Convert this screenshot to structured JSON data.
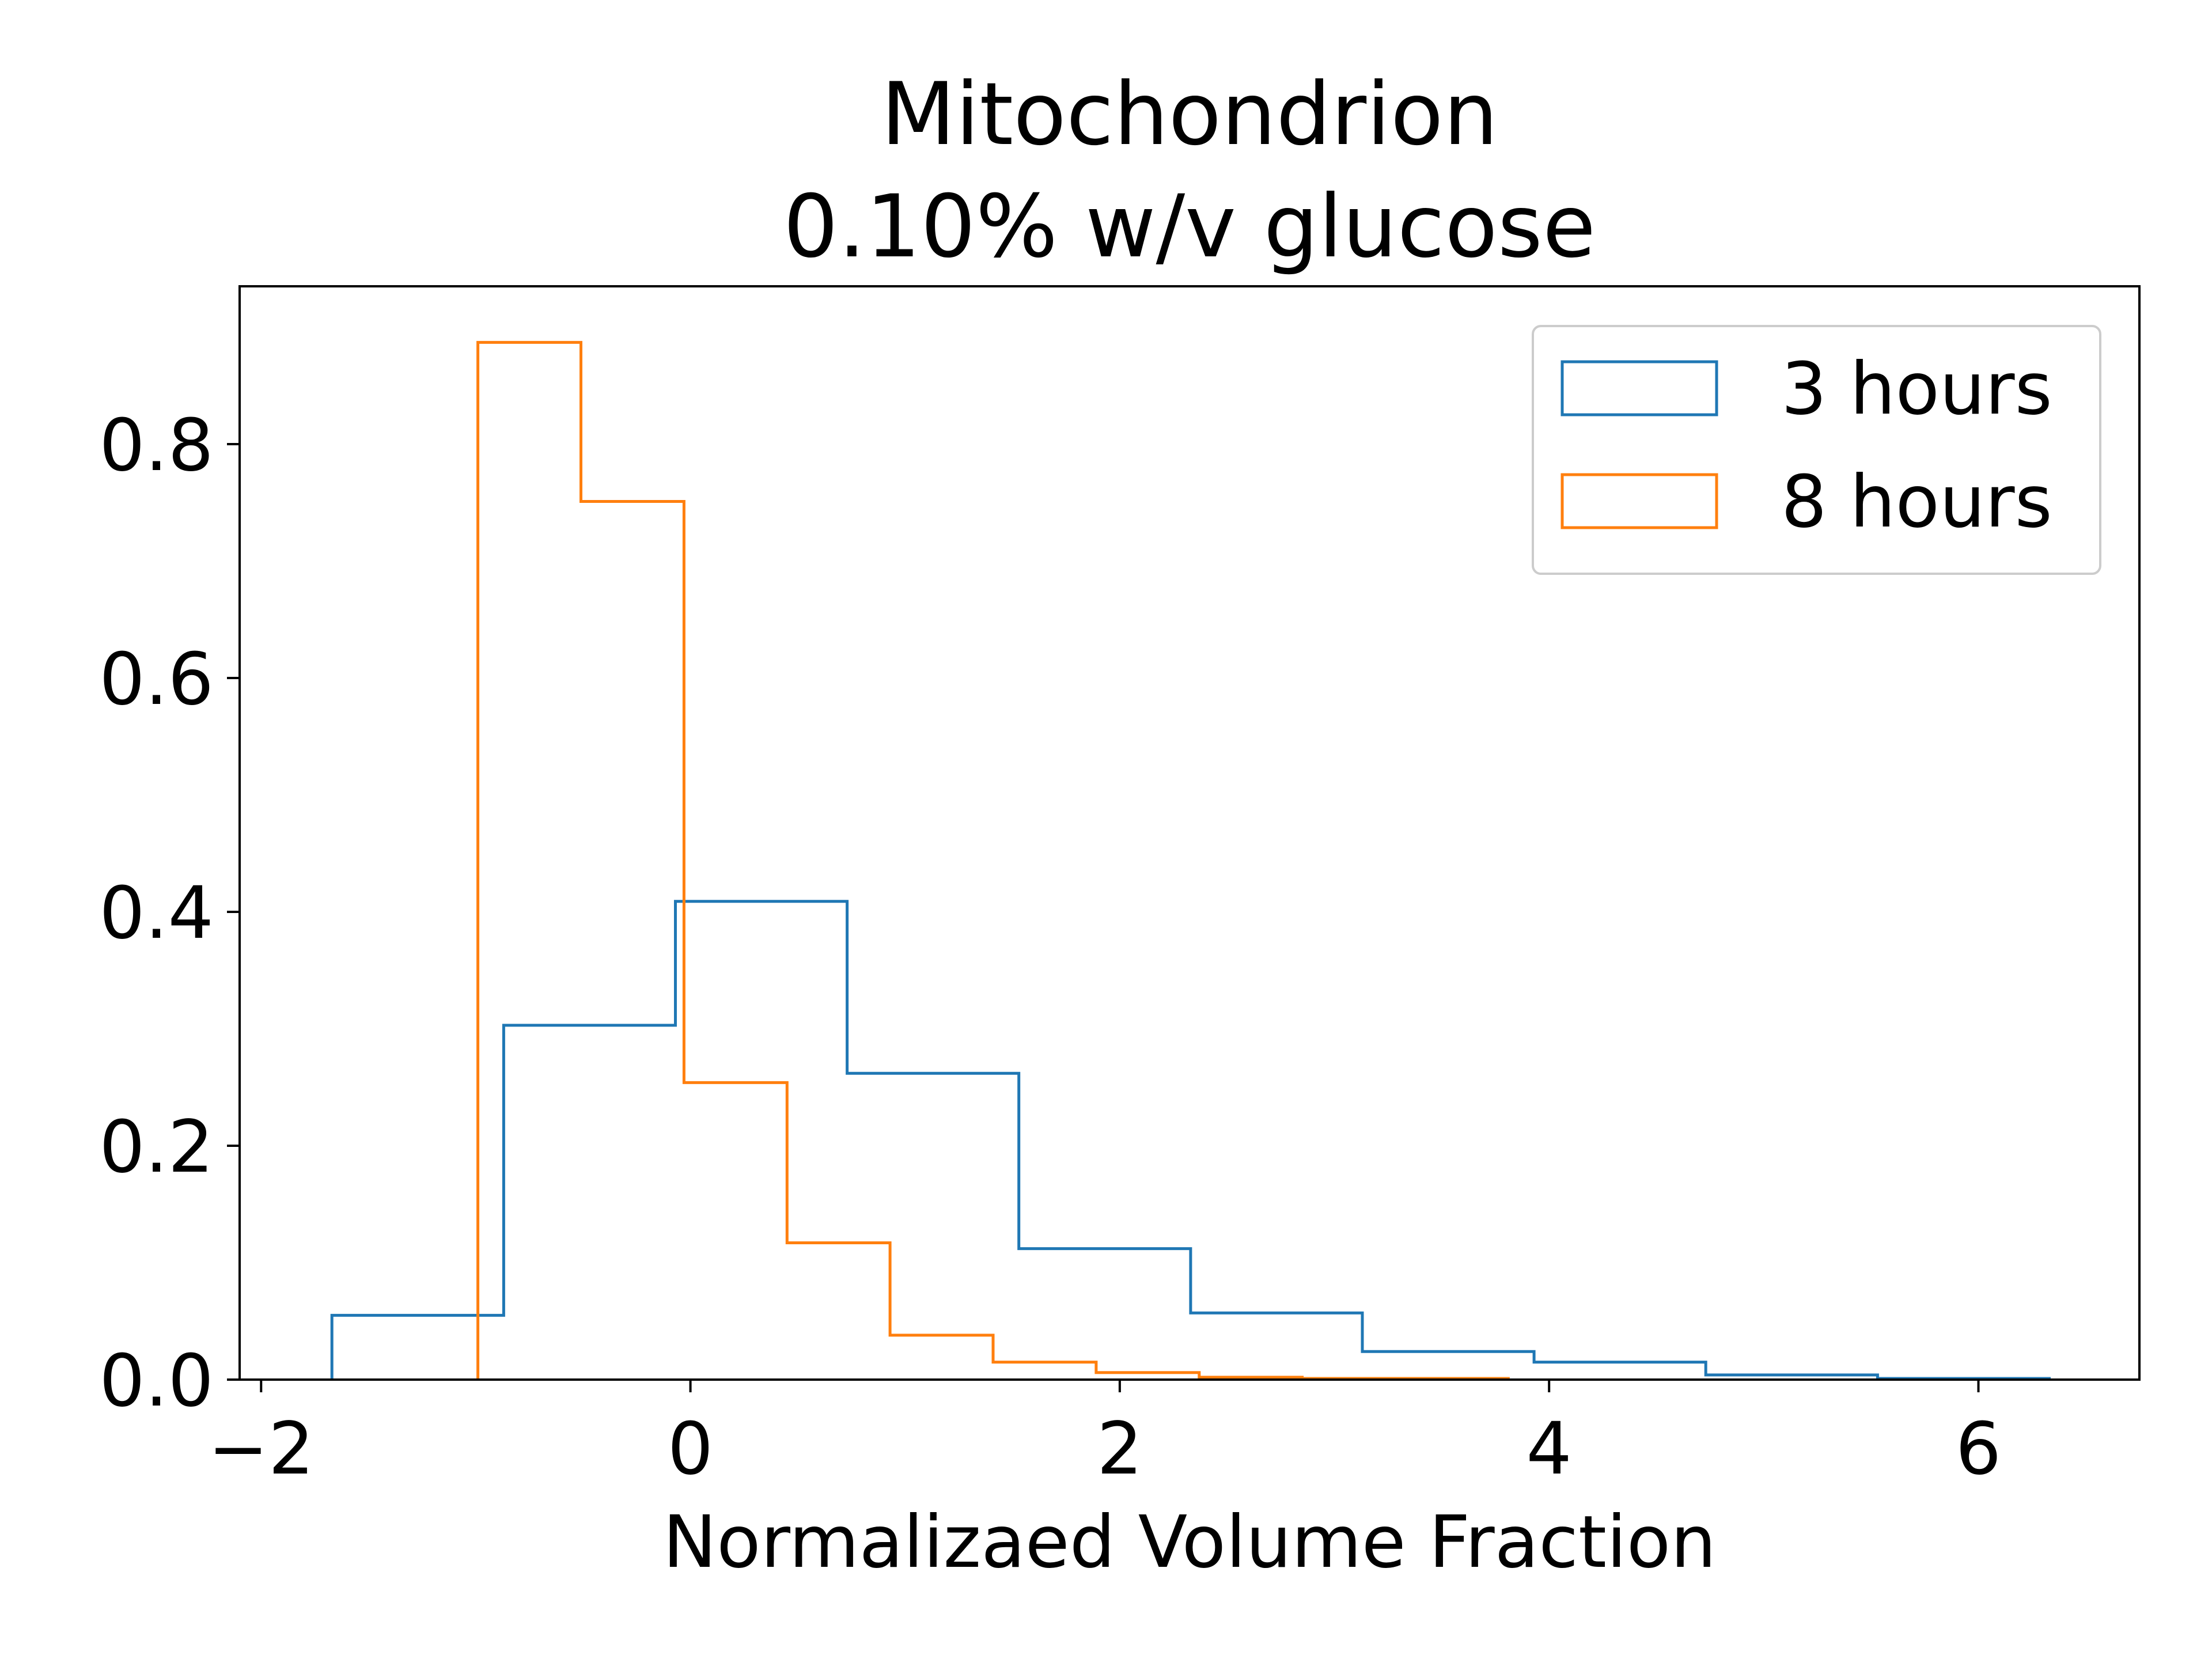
{
  "chart_data": {
    "type": "histogram",
    "title": "Mitochondrion",
    "subtitle": "0.10% w/v glucose",
    "xlabel": "Normalizaed Volume Fraction",
    "ylabel": "",
    "xlim": [
      -2.1,
      6.75
    ],
    "ylim": [
      0,
      0.935
    ],
    "xticks": [
      {
        "value": -2,
        "label": "−2"
      },
      {
        "value": 0,
        "label": "0"
      },
      {
        "value": 2,
        "label": "2"
      },
      {
        "value": 4,
        "label": "4"
      },
      {
        "value": 6,
        "label": "6"
      }
    ],
    "yticks": [
      {
        "value": 0.0,
        "label": "0.0"
      },
      {
        "value": 0.2,
        "label": "0.2"
      },
      {
        "value": 0.4,
        "label": "0.4"
      },
      {
        "value": 0.6,
        "label": "0.6"
      },
      {
        "value": 0.8,
        "label": "0.8"
      }
    ],
    "grid": false,
    "legend_position": "top-right",
    "series": [
      {
        "name": "3 hours",
        "color": "#1f77b4",
        "bin_edges": [
          -1.67,
          -0.87,
          -0.07,
          0.73,
          1.53,
          2.33,
          3.13,
          3.93,
          4.73,
          5.53,
          6.33
        ],
        "values": [
          0.055,
          0.303,
          0.409,
          0.262,
          0.112,
          0.057,
          0.024,
          0.015,
          0.004,
          0.001
        ]
      },
      {
        "name": "8 hours",
        "color": "#ff7f0e",
        "bin_edges": [
          -0.99,
          -0.51,
          -0.03,
          0.45,
          0.93,
          1.41,
          1.89,
          2.37,
          2.85,
          3.33,
          3.81
        ],
        "values": [
          0.887,
          0.751,
          0.254,
          0.117,
          0.038,
          0.015,
          0.006,
          0.002,
          0.001,
          0.001
        ]
      }
    ]
  }
}
